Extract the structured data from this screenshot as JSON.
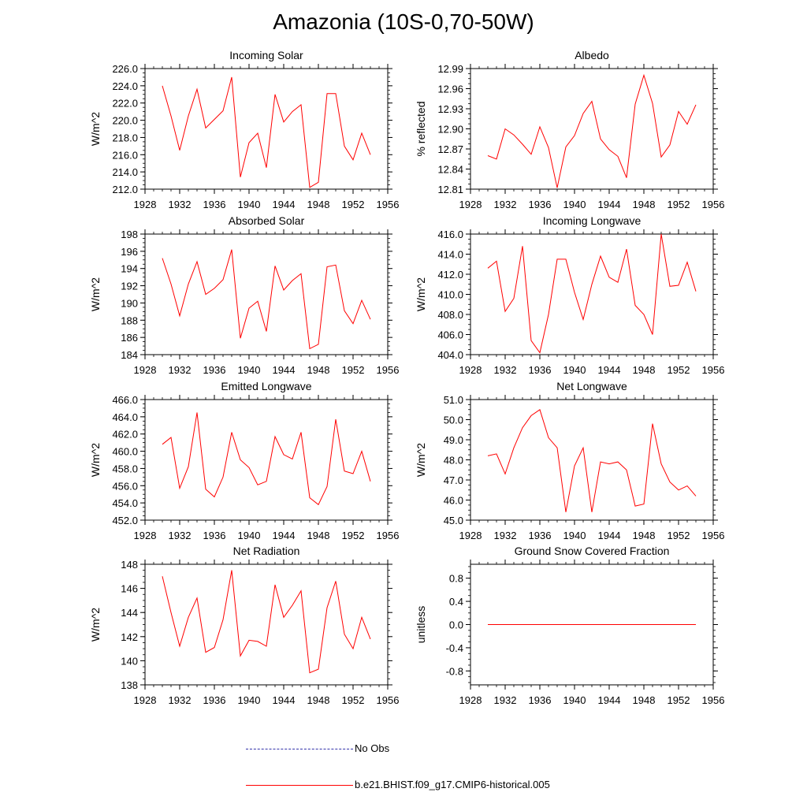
{
  "title": "Amazonia (10S-0,70-50W)",
  "colors": {
    "model": "#ff0000",
    "obs": "#3333aa",
    "axis": "#000000"
  },
  "legend": {
    "obs_label": "No Obs",
    "model_label": "b.e21.BHIST.f09_g17.CMIP6-historical.005"
  },
  "chart_data": [
    {
      "type": "line",
      "title": "Incoming Solar",
      "ylabel": "W/m^2",
      "xlim": [
        1928,
        1956
      ],
      "xticks": [
        1928,
        1932,
        1936,
        1940,
        1944,
        1948,
        1952,
        1956
      ],
      "ylim": [
        212,
        226
      ],
      "yticks": [
        212,
        214,
        216,
        218,
        220,
        222,
        224,
        226
      ],
      "ydec": 1,
      "x": [
        1930,
        1931,
        1932,
        1933,
        1934,
        1935,
        1936,
        1937,
        1938,
        1939,
        1940,
        1941,
        1942,
        1943,
        1944,
        1945,
        1946,
        1947,
        1948,
        1949,
        1950,
        1951,
        1952,
        1953,
        1954
      ],
      "series": [
        {
          "name": "b.e21.BHIST.f09_g17.CMIP6-historical.005",
          "values": [
            224.0,
            220.5,
            216.5,
            220.5,
            223.6,
            219.1,
            220.1,
            221.1,
            225.0,
            213.4,
            217.4,
            218.5,
            214.5,
            223.0,
            219.8,
            221.0,
            221.8,
            212.2,
            212.8,
            223.1,
            223.1,
            217.0,
            215.4,
            218.5,
            216.0
          ]
        }
      ]
    },
    {
      "type": "line",
      "title": "Albedo",
      "ylabel": "% reflected",
      "xlim": [
        1928,
        1956
      ],
      "xticks": [
        1928,
        1932,
        1936,
        1940,
        1944,
        1948,
        1952,
        1956
      ],
      "ylim": [
        12.81,
        12.99
      ],
      "yticks": [
        12.81,
        12.84,
        12.87,
        12.9,
        12.93,
        12.96,
        12.99
      ],
      "ydec": 2,
      "x": [
        1930,
        1931,
        1932,
        1933,
        1934,
        1935,
        1936,
        1937,
        1938,
        1939,
        1940,
        1941,
        1942,
        1943,
        1944,
        1945,
        1946,
        1947,
        1948,
        1949,
        1950,
        1951,
        1952,
        1953,
        1954
      ],
      "series": [
        {
          "name": "b.e21.BHIST.f09_g17.CMIP6-historical.005",
          "values": [
            12.86,
            12.855,
            12.9,
            12.891,
            12.877,
            12.862,
            12.903,
            12.872,
            12.812,
            12.873,
            12.89,
            12.923,
            12.941,
            12.885,
            12.869,
            12.859,
            12.827,
            12.937,
            12.98,
            12.938,
            12.858,
            12.876,
            12.926,
            12.907,
            12.936
          ]
        }
      ]
    },
    {
      "type": "line",
      "title": "Absorbed Solar",
      "ylabel": "W/m^2",
      "xlim": [
        1928,
        1956
      ],
      "xticks": [
        1928,
        1932,
        1936,
        1940,
        1944,
        1948,
        1952,
        1956
      ],
      "ylim": [
        184,
        198
      ],
      "yticks": [
        184,
        186,
        188,
        190,
        192,
        194,
        196,
        198
      ],
      "ydec": 0,
      "x": [
        1930,
        1931,
        1932,
        1933,
        1934,
        1935,
        1936,
        1937,
        1938,
        1939,
        1940,
        1941,
        1942,
        1943,
        1944,
        1945,
        1946,
        1947,
        1948,
        1949,
        1950,
        1951,
        1952,
        1953,
        1954
      ],
      "series": [
        {
          "name": "b.e21.BHIST.f09_g17.CMIP6-historical.005",
          "values": [
            195.2,
            192.2,
            188.5,
            192.2,
            194.8,
            191.0,
            191.7,
            192.7,
            196.2,
            185.9,
            189.4,
            190.2,
            186.7,
            194.3,
            191.5,
            192.6,
            193.4,
            184.7,
            185.2,
            194.2,
            194.4,
            189.1,
            187.6,
            190.3,
            188.1
          ]
        }
      ]
    },
    {
      "type": "line",
      "title": "Incoming Longwave",
      "ylabel": "W/m^2",
      "xlim": [
        1928,
        1956
      ],
      "xticks": [
        1928,
        1932,
        1936,
        1940,
        1944,
        1948,
        1952,
        1956
      ],
      "ylim": [
        404,
        416
      ],
      "yticks": [
        404,
        406,
        408,
        410,
        412,
        414,
        416
      ],
      "ydec": 1,
      "x": [
        1930,
        1931,
        1932,
        1933,
        1934,
        1935,
        1936,
        1937,
        1938,
        1939,
        1940,
        1941,
        1942,
        1943,
        1944,
        1945,
        1946,
        1947,
        1948,
        1949,
        1950,
        1951,
        1952,
        1953,
        1954
      ],
      "series": [
        {
          "name": "b.e21.BHIST.f09_g17.CMIP6-historical.005",
          "values": [
            412.6,
            413.3,
            408.3,
            409.6,
            414.8,
            405.4,
            404.2,
            408.0,
            413.5,
            413.5,
            410.2,
            407.5,
            411.0,
            413.8,
            411.7,
            411.2,
            414.5,
            408.9,
            408.0,
            406.0,
            416.0,
            410.8,
            410.9,
            413.2,
            410.3
          ]
        }
      ]
    },
    {
      "type": "line",
      "title": "Emitted Longwave",
      "ylabel": "W/m^2",
      "xlim": [
        1928,
        1956
      ],
      "xticks": [
        1928,
        1932,
        1936,
        1940,
        1944,
        1948,
        1952,
        1956
      ],
      "ylim": [
        452,
        466
      ],
      "yticks": [
        452,
        454,
        456,
        458,
        460,
        462,
        464,
        466
      ],
      "ydec": 1,
      "x": [
        1930,
        1931,
        1932,
        1933,
        1934,
        1935,
        1936,
        1937,
        1938,
        1939,
        1940,
        1941,
        1942,
        1943,
        1944,
        1945,
        1946,
        1947,
        1948,
        1949,
        1950,
        1951,
        1952,
        1953,
        1954
      ],
      "series": [
        {
          "name": "b.e21.BHIST.f09_g17.CMIP6-historical.005",
          "values": [
            460.8,
            461.6,
            455.7,
            458.2,
            464.5,
            455.6,
            454.7,
            457.0,
            462.2,
            459.0,
            458.1,
            456.1,
            456.5,
            461.7,
            459.6,
            459.1,
            462.2,
            454.6,
            453.8,
            455.9,
            463.7,
            457.7,
            457.4,
            460.0,
            456.5
          ]
        }
      ]
    },
    {
      "type": "line",
      "title": "Net Longwave",
      "ylabel": "W/m^2",
      "xlim": [
        1928,
        1956
      ],
      "xticks": [
        1928,
        1932,
        1936,
        1940,
        1944,
        1948,
        1952,
        1956
      ],
      "ylim": [
        45,
        51
      ],
      "yticks": [
        45,
        46,
        47,
        48,
        49,
        50,
        51
      ],
      "ydec": 1,
      "x": [
        1930,
        1931,
        1932,
        1933,
        1934,
        1935,
        1936,
        1937,
        1938,
        1939,
        1940,
        1941,
        1942,
        1943,
        1944,
        1945,
        1946,
        1947,
        1948,
        1949,
        1950,
        1951,
        1952,
        1953,
        1954
      ],
      "series": [
        {
          "name": "b.e21.BHIST.f09_g17.CMIP6-historical.005",
          "values": [
            48.2,
            48.3,
            47.3,
            48.6,
            49.6,
            50.2,
            50.5,
            49.1,
            48.6,
            45.4,
            47.7,
            48.6,
            45.4,
            47.9,
            47.8,
            47.9,
            47.5,
            45.7,
            45.8,
            49.8,
            47.8,
            46.9,
            46.5,
            46.7,
            46.2
          ]
        }
      ]
    },
    {
      "type": "line",
      "title": "Net Radiation",
      "ylabel": "W/m^2",
      "xlim": [
        1928,
        1956
      ],
      "xticks": [
        1928,
        1932,
        1936,
        1940,
        1944,
        1948,
        1952,
        1956
      ],
      "ylim": [
        138,
        148
      ],
      "yticks": [
        138,
        140,
        142,
        144,
        146,
        148
      ],
      "ydec": 0,
      "x": [
        1930,
        1931,
        1932,
        1933,
        1934,
        1935,
        1936,
        1937,
        1938,
        1939,
        1940,
        1941,
        1942,
        1943,
        1944,
        1945,
        1946,
        1947,
        1948,
        1949,
        1950,
        1951,
        1952,
        1953,
        1954
      ],
      "series": [
        {
          "name": "b.e21.BHIST.f09_g17.CMIP6-historical.005",
          "values": [
            147.0,
            144.0,
            141.2,
            143.6,
            145.2,
            140.7,
            141.1,
            143.4,
            147.5,
            140.4,
            141.7,
            141.6,
            141.2,
            146.3,
            143.6,
            144.6,
            145.8,
            139.0,
            139.3,
            144.4,
            146.6,
            142.2,
            141.0,
            143.6,
            141.8
          ]
        }
      ]
    },
    {
      "type": "line",
      "title": "Ground Snow Covered Fraction",
      "ylabel": "unitless",
      "xlim": [
        1928,
        1956
      ],
      "xticks": [
        1928,
        1932,
        1936,
        1940,
        1944,
        1948,
        1952,
        1956
      ],
      "ylim": [
        -1.04,
        1.04
      ],
      "yticks": [
        -0.8,
        -0.4,
        0.0,
        0.4,
        0.8
      ],
      "ydec": 1,
      "x": [
        1930,
        1931,
        1932,
        1933,
        1934,
        1935,
        1936,
        1937,
        1938,
        1939,
        1940,
        1941,
        1942,
        1943,
        1944,
        1945,
        1946,
        1947,
        1948,
        1949,
        1950,
        1951,
        1952,
        1953,
        1954
      ],
      "series": [
        {
          "name": "b.e21.BHIST.f09_g17.CMIP6-historical.005",
          "values": [
            0,
            0,
            0,
            0,
            0,
            0,
            0,
            0,
            0,
            0,
            0,
            0,
            0,
            0,
            0,
            0,
            0,
            0,
            0,
            0,
            0,
            0,
            0,
            0,
            0
          ]
        }
      ]
    }
  ]
}
